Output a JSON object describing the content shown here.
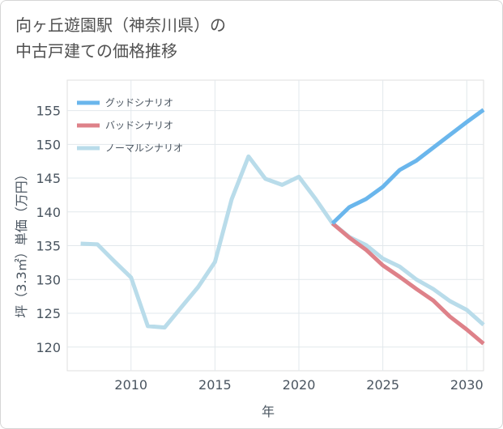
{
  "title": {
    "line1": "向ヶ丘遊園駅（神奈川県）の",
    "line2": "中古戸建ての価格推移"
  },
  "chart_data": {
    "type": "line",
    "xlabel": "年",
    "ylabel": "坪（3.3㎡）単価（万円）",
    "xlim": [
      2006.2,
      2031
    ],
    "ylim": [
      116.5,
      159.5
    ],
    "xticks": [
      2010,
      2015,
      2020,
      2025,
      2030
    ],
    "yticks": [
      120,
      125,
      130,
      135,
      140,
      145,
      150,
      155
    ],
    "grid": true,
    "legend_position": "top-left",
    "series": [
      {
        "name": "グッドシナリオ",
        "color": "#6ab6ec",
        "x": [
          2022,
          2023,
          2024,
          2025,
          2026,
          2027,
          2028,
          2029,
          2030,
          2031
        ],
        "values": [
          138.3,
          140.7,
          141.9,
          143.7,
          146.2,
          147.6,
          149.5,
          151.4,
          153.3,
          155.1
        ]
      },
      {
        "name": "バッドシナリオ",
        "color": "#de8189",
        "x": [
          2022,
          2023,
          2024,
          2025,
          2026,
          2027,
          2028,
          2029,
          2030,
          2031
        ],
        "values": [
          138.3,
          136.2,
          134.4,
          132.1,
          130.4,
          128.6,
          126.9,
          124.5,
          122.6,
          120.5
        ]
      },
      {
        "name": "ノーマルシナリオ",
        "color": "#b9dcea",
        "x": [
          2007,
          2008,
          2009,
          2010,
          2011,
          2012,
          2013,
          2014,
          2015,
          2016,
          2017,
          2018,
          2019,
          2020,
          2021,
          2022,
          2023,
          2024,
          2025,
          2026,
          2027,
          2028,
          2029,
          2030,
          2031
        ],
        "values": [
          135.3,
          135.2,
          132.7,
          130.3,
          123.1,
          122.9,
          125.9,
          128.9,
          132.6,
          141.9,
          148.2,
          144.9,
          144.0,
          145.2,
          141.9,
          138.3,
          136.3,
          135.1,
          133.1,
          131.9,
          130.0,
          128.6,
          126.8,
          125.5,
          123.3
        ]
      }
    ]
  }
}
